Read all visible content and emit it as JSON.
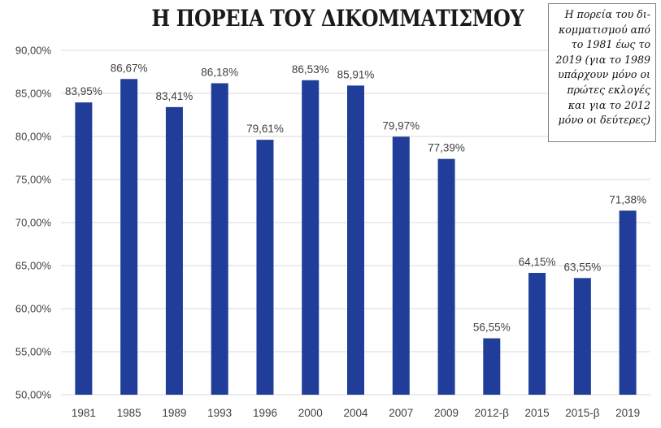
{
  "chart_data": {
    "type": "bar",
    "title": "Η ΠΟΡΕΙΑ ΤΟΥ ΔΙΚΟΜΜΑΤΙΣΜΟΥ",
    "note": "Η πορεία του δι-\nκομματισμού από\nτο 1981 έως το\n2019 (για το 1989\nυπάρχουν μόνο οι\nπρώτες εκλογές\nκαι για το 2012\nμόνο οι δεύτερες)",
    "categories": [
      "1981",
      "1985",
      "1989",
      "1993",
      "1996",
      "2000",
      "2004",
      "2007",
      "2009",
      "2012-β",
      "2015",
      "2015-β",
      "2019"
    ],
    "values": [
      83.95,
      86.67,
      83.41,
      86.18,
      79.61,
      86.53,
      85.91,
      79.97,
      77.39,
      56.55,
      64.15,
      63.55,
      71.38
    ],
    "data_labels": [
      "83,95%",
      "86,67%",
      "83,41%",
      "86,18%",
      "79,61%",
      "86,53%",
      "85,91%",
      "79,97%",
      "77,39%",
      "56,55%",
      "64,15%",
      "63,55%",
      "71,38%"
    ],
    "y_ticks": [
      50,
      55,
      60,
      65,
      70,
      75,
      80,
      85,
      90
    ],
    "y_tick_labels": [
      "50,00%",
      "55,00%",
      "60,00%",
      "65,00%",
      "70,00%",
      "75,00%",
      "80,00%",
      "85,00%",
      "90,00%"
    ],
    "ylim": [
      50,
      90
    ],
    "xlabel": "",
    "ylabel": "",
    "grid": true,
    "colors": {
      "bar": "#1f3d99",
      "grid": "#d9d9d9",
      "text": "#404040"
    }
  }
}
